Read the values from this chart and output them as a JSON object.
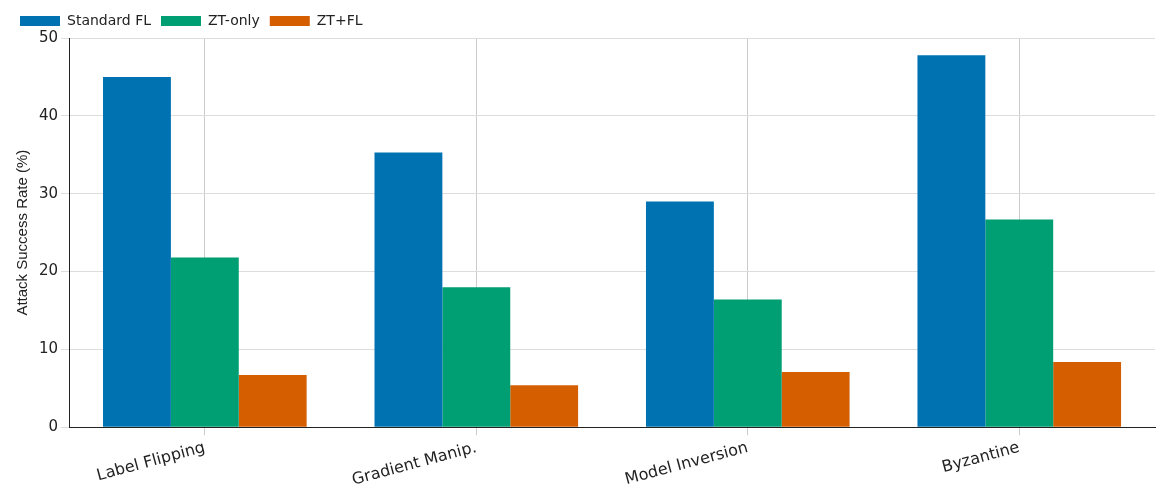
{
  "chart_data": {
    "type": "bar",
    "ylabel": "Attack Success Rate (%)",
    "categories": [
      "Label Flipping",
      "Gradient Manip.",
      "Model Inversion",
      "Byzantine"
    ],
    "series": [
      {
        "name": "Standard FL",
        "color": "#0072b2",
        "values": [
          45,
          35.3,
          29.0,
          47.8
        ]
      },
      {
        "name": "ZT-only",
        "color": "#009e73",
        "values": [
          21.8,
          18.0,
          16.4,
          26.7
        ]
      },
      {
        "name": "ZT+FL",
        "color": "#d55e00",
        "values": [
          6.7,
          5.4,
          7.1,
          8.4
        ]
      }
    ],
    "ylim": [
      0,
      50
    ],
    "yticks": [
      0,
      10,
      20,
      30,
      40,
      50
    ],
    "grid": true,
    "legend": "top left"
  }
}
